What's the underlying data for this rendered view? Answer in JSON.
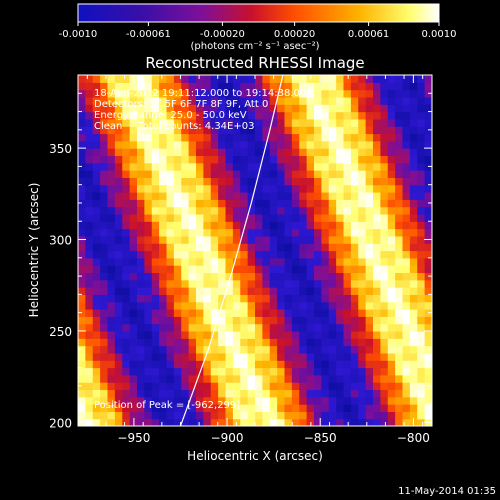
{
  "colorbar": {
    "ticks": [
      "-0.0010",
      "-0.00061",
      "-0.00020",
      "0.00020",
      "0.00061",
      "0.0010"
    ],
    "tick_values": [
      -0.001,
      -0.00061,
      -0.0002,
      0.0002,
      0.00061,
      0.001
    ],
    "unit_label": "(photons cm⁻² s⁻¹ asec⁻²)",
    "range": [
      -0.001,
      0.001
    ],
    "colormap": [
      "#000000",
      "#3a0fa8",
      "#7d0f9a",
      "#c8102d",
      "#ff4e00",
      "#ffb300",
      "#ffff70",
      "#ffffff"
    ]
  },
  "chart_data": {
    "type": "heatmap",
    "title": "Reconstructed RHESSI Image",
    "xlabel": "Heliocentric X (arcsec)",
    "ylabel": "Heliocentric Y (arcsec)",
    "xlim": [
      -980,
      -790
    ],
    "ylim": [
      198,
      390
    ],
    "xticks": [
      -950,
      -900,
      -850,
      -800
    ],
    "yticks": [
      200,
      250,
      300,
      350
    ],
    "xtick_labels": [
      "−950",
      "−900",
      "−850",
      "−800"
    ],
    "ytick_labels": [
      "200",
      "250",
      "300",
      "350"
    ],
    "stripe_slope": 2.7,
    "stripe_period": 96,
    "stripe_phase_x": -1000,
    "limb_curve": [
      [
        -925,
        198
      ],
      [
        -910,
        240
      ],
      [
        -898,
        280
      ],
      [
        -887,
        320
      ],
      [
        -877,
        360
      ],
      [
        -870,
        390
      ]
    ],
    "peak": [
      -962,
      299
    ]
  },
  "annotations": {
    "line1": "18-Aug-2012 19:11:12.000 to 19:14:38.000",
    "line2": "Detectors: 3F 5F 6F 7F 8F 9F, Att 0",
    "line3": "Energy Range: 25.0 - 50.0 keV",
    "line4": "Clean     Total counts: 4.34E+03",
    "peak_label": "Position of Peak = [-962,299]"
  },
  "footer": {
    "timestamp": "11-May-2014 01:35"
  }
}
